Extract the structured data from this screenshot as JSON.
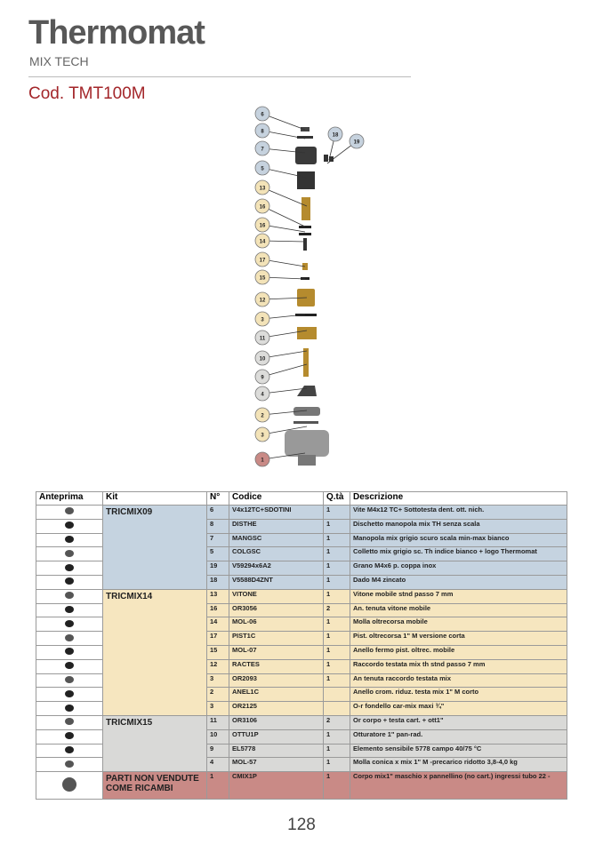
{
  "header": {
    "brand": "Thermomat",
    "subtitle": "MIX TECH",
    "code": "Cod. TMT100M"
  },
  "diagram": {
    "callouts": [
      6,
      8,
      7,
      5,
      13,
      16,
      16,
      14,
      17,
      15,
      12,
      3,
      11,
      10,
      9,
      4,
      2,
      3,
      1,
      18,
      19
    ]
  },
  "table": {
    "headers": [
      "Anteprima",
      "Kit",
      "N°",
      "Codice",
      "Q.tà",
      "Descrizione"
    ],
    "groups": [
      {
        "kit": "TRICMIX09",
        "rows": [
          {
            "n": "6",
            "code": "V4x12TC+SDOTINI",
            "qty": "1",
            "desc": "Vite M4x12 TC+ Sottotesta dent. ott. nich."
          },
          {
            "n": "8",
            "code": "DISTHE",
            "qty": "1",
            "desc": "Dischetto manopola mix TH senza scala"
          },
          {
            "n": "7",
            "code": "MANGSC",
            "qty": "1",
            "desc": "Manopola mix grigio scuro scala min-max bianco"
          },
          {
            "n": "5",
            "code": "COLGSC",
            "qty": "1",
            "desc": "Colletto mix grigio sc. Th indice bianco + logo Thermomat"
          },
          {
            "n": "19",
            "code": "V59294x6A2",
            "qty": "1",
            "desc": "Grano M4x6 p. coppa inox"
          },
          {
            "n": "18",
            "code": "V5588D4ZNT",
            "qty": "1",
            "desc": "Dado M4 zincato"
          }
        ]
      },
      {
        "kit": "TRICMIX14",
        "rows": [
          {
            "n": "13",
            "code": "VITONE",
            "qty": "1",
            "desc": "Vitone mobile stnd passo 7 mm"
          },
          {
            "n": "16",
            "code": "OR3056",
            "qty": "2",
            "desc": "An. tenuta vitone mobile"
          },
          {
            "n": "14",
            "code": "MOL-06",
            "qty": "1",
            "desc": "Molla oltrecorsa mobile"
          },
          {
            "n": "17",
            "code": "PIST1C",
            "qty": "1",
            "desc": "Pist. oltrecorsa 1\" M versione corta"
          },
          {
            "n": "15",
            "code": "MOL-07",
            "qty": "1",
            "desc": "Anello fermo pist. oltrec. mobile"
          },
          {
            "n": "12",
            "code": "RACTES",
            "qty": "1",
            "desc": "Raccordo testata mix th stnd passo 7 mm"
          },
          {
            "n": "3",
            "code": "OR2093",
            "qty": "1",
            "desc": "An tenuta raccordo testata mix"
          },
          {
            "n": "2",
            "code": "ANEL1C",
            "desc": "Anello crom. riduz. testa mix 1\" M corto"
          },
          {
            "n": "3",
            "code": "OR2125",
            "desc": "O-r fondello car-mix maxi ¾\""
          }
        ]
      },
      {
        "kit": "TRICMIX15",
        "rows": [
          {
            "n": "11",
            "code": "OR3106",
            "qty": "2",
            "desc": "Or corpo + testa cart. + ott1\""
          },
          {
            "n": "10",
            "code": "OTTU1P",
            "qty": "1",
            "desc": "Otturatore 1\" pan-rad."
          },
          {
            "n": "9",
            "code": "EL5778",
            "qty": "1",
            "desc": "Elemento sensibile 5778 campo 40/75 °C"
          },
          {
            "n": "4",
            "code": "MOL-57",
            "qty": "1",
            "desc": "Molla conica x mix 1\" M -precarico ridotto 3,8-4,0 kg"
          }
        ]
      },
      {
        "kit": "PARTI NON VENDUTE COME RICAMBI",
        "rows": [
          {
            "n": "1",
            "code": "CMIX1P",
            "qty": "1",
            "desc": "Corpo mix1\" maschio x pannellino (no cart.) ingressi tubo 22 -"
          }
        ]
      }
    ]
  },
  "footer": {
    "page": 128
  }
}
